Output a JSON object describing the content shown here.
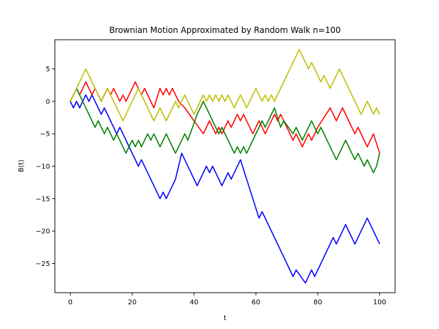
{
  "chart_data": {
    "type": "line",
    "title": "Brownian Motion Approximated by Random Walk n=100",
    "xlabel": "t",
    "ylabel": "B(t)",
    "xlim": [
      -5,
      105
    ],
    "ylim": [
      -29.5,
      9.5
    ],
    "xticks": [
      0,
      20,
      40,
      60,
      80,
      100
    ],
    "yticks": [
      5,
      0,
      -5,
      -10,
      -15,
      -20,
      -25
    ],
    "ytick_labels": [
      "5",
      "0",
      "−5",
      "−10",
      "−15",
      "−20",
      "−25"
    ],
    "grid": false,
    "series": [
      {
        "color": "#0000ff",
        "points": [
          [
            0,
            0
          ],
          [
            1,
            -1
          ],
          [
            2,
            0
          ],
          [
            3,
            -1
          ],
          [
            5,
            1
          ],
          [
            6,
            0
          ],
          [
            7,
            1
          ],
          [
            9,
            -1
          ],
          [
            10,
            -2
          ],
          [
            11,
            -1
          ],
          [
            15,
            -5
          ],
          [
            16,
            -4
          ],
          [
            22,
            -10
          ],
          [
            23,
            -9
          ],
          [
            29,
            -15
          ],
          [
            30,
            -14
          ],
          [
            31,
            -15
          ],
          [
            34,
            -12
          ],
          [
            36,
            -8
          ],
          [
            41,
            -13
          ],
          [
            42,
            -12
          ],
          [
            44,
            -10
          ],
          [
            45,
            -11
          ],
          [
            46,
            -10
          ],
          [
            49,
            -13
          ],
          [
            51,
            -11
          ],
          [
            52,
            -12
          ],
          [
            55,
            -9
          ],
          [
            61,
            -18
          ],
          [
            62,
            -17
          ],
          [
            72,
            -27
          ],
          [
            73,
            -26
          ],
          [
            76,
            -28
          ],
          [
            78,
            -26
          ],
          [
            79,
            -27
          ],
          [
            85,
            -21
          ],
          [
            86,
            -22
          ],
          [
            89,
            -19
          ],
          [
            92,
            -22
          ],
          [
            96,
            -18
          ],
          [
            100,
            -22
          ]
        ]
      },
      {
        "color": "#ff0000",
        "points": [
          [
            0,
            0
          ],
          [
            2,
            2
          ],
          [
            3,
            1
          ],
          [
            5,
            3
          ],
          [
            7,
            1
          ],
          [
            8,
            2
          ],
          [
            10,
            0
          ],
          [
            12,
            2
          ],
          [
            13,
            1
          ],
          [
            14,
            2
          ],
          [
            16,
            0
          ],
          [
            17,
            1
          ],
          [
            18,
            0
          ],
          [
            21,
            3
          ],
          [
            23,
            1
          ],
          [
            24,
            2
          ],
          [
            27,
            -1
          ],
          [
            29,
            2
          ],
          [
            30,
            1
          ],
          [
            31,
            2
          ],
          [
            32,
            1
          ],
          [
            33,
            2
          ],
          [
            35,
            0
          ],
          [
            37,
            -1
          ],
          [
            43,
            -5
          ],
          [
            45,
            -3
          ],
          [
            47,
            -5
          ],
          [
            48,
            -4
          ],
          [
            49,
            -5
          ],
          [
            51,
            -3
          ],
          [
            52,
            -4
          ],
          [
            54,
            -2
          ],
          [
            55,
            -3
          ],
          [
            56,
            -2
          ],
          [
            59,
            -5
          ],
          [
            61,
            -3
          ],
          [
            63,
            -5
          ],
          [
            66,
            -2
          ],
          [
            67,
            -3
          ],
          [
            68,
            -2
          ],
          [
            72,
            -6
          ],
          [
            73,
            -5
          ],
          [
            74,
            -6
          ],
          [
            75,
            -7
          ],
          [
            77,
            -5
          ],
          [
            78,
            -6
          ],
          [
            80,
            -4
          ],
          [
            84,
            -1
          ],
          [
            86,
            -3
          ],
          [
            88,
            -1
          ],
          [
            92,
            -5
          ],
          [
            93,
            -4
          ],
          [
            96,
            -7
          ],
          [
            98,
            -5
          ],
          [
            100,
            -8
          ]
        ]
      },
      {
        "color": "#008000",
        "points": [
          [
            0,
            0
          ],
          [
            2,
            2
          ],
          [
            8,
            -4
          ],
          [
            9,
            -3
          ],
          [
            11,
            -5
          ],
          [
            12,
            -4
          ],
          [
            14,
            -6
          ],
          [
            15,
            -5
          ],
          [
            18,
            -8
          ],
          [
            20,
            -6
          ],
          [
            21,
            -7
          ],
          [
            22,
            -6
          ],
          [
            23,
            -7
          ],
          [
            25,
            -5
          ],
          [
            26,
            -6
          ],
          [
            27,
            -5
          ],
          [
            29,
            -7
          ],
          [
            31,
            -5
          ],
          [
            32,
            -6
          ],
          [
            34,
            -8
          ],
          [
            37,
            -5
          ],
          [
            38,
            -6
          ],
          [
            41,
            -2
          ],
          [
            42,
            -1
          ],
          [
            43,
            0
          ],
          [
            48,
            -5
          ],
          [
            49,
            -4
          ],
          [
            53,
            -8
          ],
          [
            54,
            -7
          ],
          [
            55,
            -8
          ],
          [
            56,
            -7
          ],
          [
            57,
            -8
          ],
          [
            58,
            -7
          ],
          [
            62,
            -3
          ],
          [
            63,
            -4
          ],
          [
            66,
            -1
          ],
          [
            68,
            -4
          ],
          [
            69,
            -3
          ],
          [
            72,
            -5
          ],
          [
            73,
            -4
          ],
          [
            75,
            -6
          ],
          [
            76,
            -5
          ],
          [
            78,
            -3
          ],
          [
            80,
            -5
          ],
          [
            81,
            -4
          ],
          [
            86,
            -9
          ],
          [
            87,
            -8
          ],
          [
            89,
            -6
          ],
          [
            92,
            -9
          ],
          [
            93,
            -8
          ],
          [
            95,
            -10
          ],
          [
            96,
            -9
          ],
          [
            98,
            -11
          ],
          [
            99,
            -10
          ],
          [
            100,
            -8
          ]
        ]
      },
      {
        "color": "#bfbf00",
        "points": [
          [
            0,
            0
          ],
          [
            5,
            5
          ],
          [
            7,
            3
          ],
          [
            8,
            2
          ],
          [
            10,
            0
          ],
          [
            12,
            2
          ],
          [
            13,
            1
          ],
          [
            17,
            -3
          ],
          [
            18,
            -2
          ],
          [
            22,
            2
          ],
          [
            24,
            0
          ],
          [
            27,
            -3
          ],
          [
            29,
            -1
          ],
          [
            31,
            -3
          ],
          [
            34,
            0
          ],
          [
            35,
            -1
          ],
          [
            37,
            1
          ],
          [
            38,
            0
          ],
          [
            40,
            -2
          ],
          [
            42,
            0
          ],
          [
            43,
            1
          ],
          [
            44,
            0
          ],
          [
            45,
            1
          ],
          [
            46,
            0
          ],
          [
            47,
            1
          ],
          [
            48,
            0
          ],
          [
            49,
            1
          ],
          [
            50,
            0
          ],
          [
            51,
            1
          ],
          [
            52,
            0
          ],
          [
            53,
            -1
          ],
          [
            55,
            1
          ],
          [
            57,
            -1
          ],
          [
            60,
            2
          ],
          [
            62,
            0
          ],
          [
            63,
            1
          ],
          [
            64,
            0
          ],
          [
            65,
            1
          ],
          [
            66,
            0
          ],
          [
            68,
            2
          ],
          [
            71,
            5
          ],
          [
            74,
            8
          ],
          [
            77,
            5
          ],
          [
            78,
            6
          ],
          [
            81,
            3
          ],
          [
            82,
            4
          ],
          [
            84,
            2
          ],
          [
            87,
            5
          ],
          [
            92,
            0
          ],
          [
            94,
            -2
          ],
          [
            96,
            0
          ],
          [
            98,
            -2
          ],
          [
            99,
            -1
          ],
          [
            100,
            -2
          ]
        ]
      }
    ]
  }
}
